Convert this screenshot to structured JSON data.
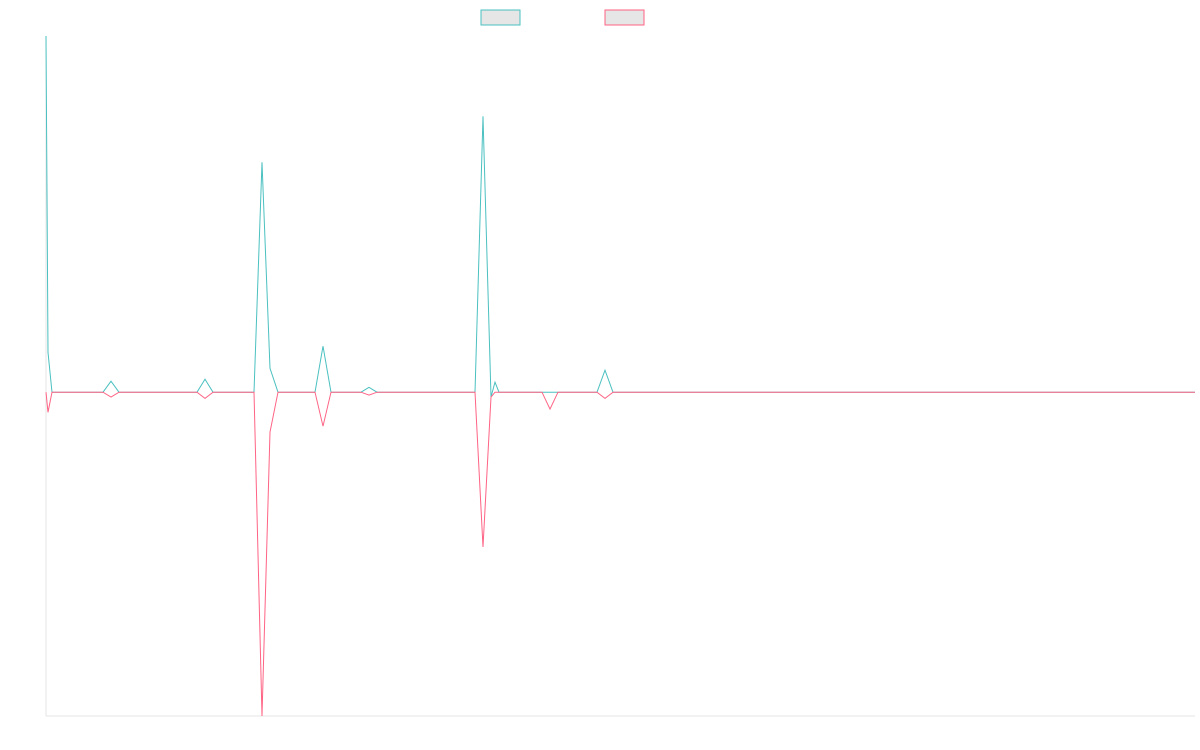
{
  "chart_data": {
    "type": "line",
    "x": [
      0,
      2,
      6,
      23,
      57,
      65,
      73,
      143,
      151,
      159,
      167,
      208,
      216,
      224,
      232,
      241,
      257,
      269,
      277,
      285,
      315,
      323,
      331,
      429,
      437,
      445,
      449,
      453,
      496,
      504,
      512,
      551,
      559,
      567,
      1149
    ],
    "series": [
      {
        "color": "#4bc0c0",
        "values": [
          110,
          12.3,
          0,
          0,
          0,
          3.4,
          0,
          0,
          0,
          4,
          0,
          0,
          71,
          7.4,
          0,
          0,
          0,
          0,
          14.2,
          0,
          0,
          1.5,
          0,
          0,
          85.2,
          -1.5,
          3.1,
          0,
          0,
          0,
          0,
          0,
          6.8,
          0,
          0
        ]
      },
      {
        "color": "#ff6384",
        "values": [
          0,
          -6.2,
          0,
          0,
          0,
          -1.5,
          0,
          0,
          0,
          -1.9,
          0,
          0,
          -100,
          -12.3,
          0,
          0,
          0,
          0,
          -10.5,
          0,
          0,
          -0.9,
          0,
          0,
          -47.8,
          -1.5,
          0,
          0,
          0,
          -5.2,
          0,
          0,
          -1.9,
          0,
          0
        ]
      }
    ],
    "xlim": [
      0,
      1149
    ],
    "ylim": [
      -100,
      110
    ]
  }
}
